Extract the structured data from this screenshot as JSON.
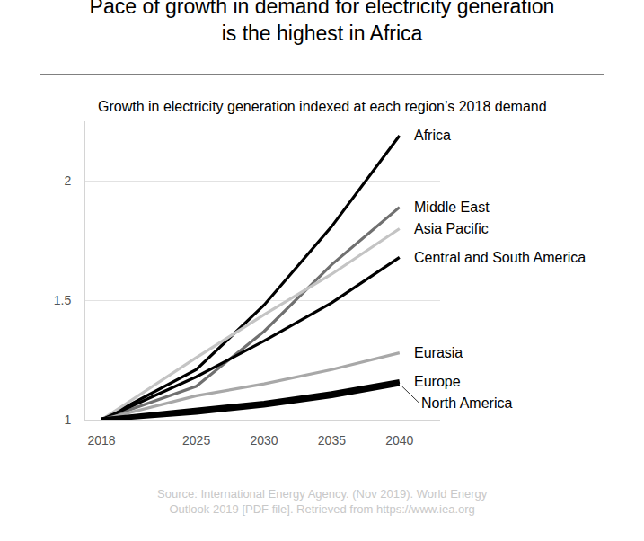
{
  "chart_data": {
    "type": "line",
    "title": [
      "Pace of growth in demand for electricity generation",
      "is the highest in Africa"
    ],
    "subtitle": "Growth in electricity generation indexed at each region’s 2018 demand",
    "source": [
      "Source: International Energy Agency. (Nov 2019). World Energy",
      "Outlook 2019 [PDF file]. Retrieved from https://www.iea.org"
    ],
    "x": [
      2018,
      2025,
      2030,
      2035,
      2040
    ],
    "series": [
      {
        "name": "Africa",
        "color": "#000000",
        "values": [
          1,
          1.21,
          1.48,
          1.81,
          2.19
        ]
      },
      {
        "name": "Middle East",
        "color": "#707070",
        "values": [
          1,
          1.14,
          1.37,
          1.65,
          1.89
        ]
      },
      {
        "name": "Asia Pacific",
        "color": "#c4c4c4",
        "values": [
          1,
          1.26,
          1.44,
          1.61,
          1.8
        ]
      },
      {
        "name": "Central and South America",
        "color": "#000000",
        "values": [
          1,
          1.18,
          1.33,
          1.49,
          1.68
        ]
      },
      {
        "name": "Eurasia",
        "color": "#a8a8a8",
        "values": [
          1,
          1.1,
          1.15,
          1.21,
          1.28
        ]
      },
      {
        "name": "Europe",
        "color": "#000000",
        "values": [
          1,
          1.04,
          1.07,
          1.11,
          1.16
        ]
      },
      {
        "name": "North America",
        "color": "#000000",
        "values": [
          1,
          1.03,
          1.06,
          1.1,
          1.15
        ]
      }
    ],
    "xlim": [
      2016.8,
      2043
    ],
    "ylim": [
      1,
      2.25
    ],
    "xticks": [
      2018,
      2025,
      2030,
      2035,
      2040
    ],
    "yticks": [
      1,
      1.5,
      2
    ],
    "grid": true
  }
}
